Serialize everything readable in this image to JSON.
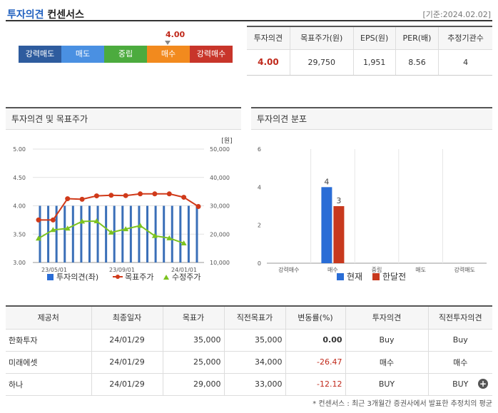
{
  "header": {
    "title_blue": "투자의견",
    "title_rest": " 컨센서스",
    "date": "[기준:2024.02.02]"
  },
  "gauge": {
    "value": "4.00",
    "segments": [
      {
        "label": "강력매도",
        "color": "#2e5c9e"
      },
      {
        "label": "매도",
        "color": "#4a90e2"
      },
      {
        "label": "중립",
        "color": "#4cab3e"
      },
      {
        "label": "매수",
        "color": "#f28a1e"
      },
      {
        "label": "강력매수",
        "color": "#c8352a"
      }
    ]
  },
  "summary": {
    "headers": [
      "투자의견",
      "목표주가(원)",
      "EPS(원)",
      "PER(배)",
      "추정기관수"
    ],
    "values": [
      "4.00",
      "29,750",
      "1,951",
      "8.56",
      "4"
    ]
  },
  "panel1": {
    "title": "투자의견 및 목표주가"
  },
  "panel2": {
    "title": "투자의견 분포"
  },
  "chart_data": [
    {
      "type": "bar+line",
      "unit_label": "[원]",
      "y_left": {
        "min": 3.0,
        "max": 5.0,
        "ticks": [
          "5.00",
          "4.50",
          "4.00",
          "3.50",
          "3.00"
        ]
      },
      "y_right": {
        "min": 10000,
        "max": 50000,
        "ticks": [
          "50,000",
          "40,000",
          "30,000",
          "20,000",
          "10,000"
        ]
      },
      "x_ticks": [
        "23/05/01",
        "23/09/01",
        "24/01/01"
      ],
      "legend": [
        "투자의견(좌)",
        "목표주가",
        "수정주가"
      ],
      "opinion_bars": [
        4.0,
        4.0,
        4.0,
        4.0,
        4.0,
        4.0,
        4.0,
        4.0,
        4.0,
        4.0,
        4.0,
        4.0,
        4.0,
        4.0,
        4.0,
        4.0,
        4.0,
        4.0,
        4.0,
        4.0
      ],
      "series": [
        {
          "name": "목표주가",
          "color": "#d03a1a",
          "values": [
            25000,
            25000,
            32500,
            32300,
            33500,
            33700,
            33600,
            34200,
            34200,
            34200,
            33000,
            29750
          ]
        },
        {
          "name": "수정주가",
          "color": "#7cc31f",
          "values": [
            18500,
            21500,
            22000,
            24500,
            24600,
            20600,
            21800,
            23000,
            19400,
            18600,
            16800
          ]
        }
      ]
    },
    {
      "type": "bar",
      "categories": [
        "강력매수",
        "매수",
        "중립",
        "매도",
        "강력매도"
      ],
      "y_ticks": [
        "6",
        "4",
        "2",
        "0"
      ],
      "ylim": [
        0,
        6
      ],
      "legend": [
        "현재",
        "한달전"
      ],
      "series": [
        {
          "name": "현재",
          "color": "#2a6dd6",
          "values": [
            0,
            4,
            0,
            0,
            0
          ]
        },
        {
          "name": "한달전",
          "color": "#c8391e",
          "values": [
            0,
            3,
            0,
            0,
            0
          ]
        }
      ]
    }
  ],
  "table": {
    "headers": [
      "제공처",
      "최종일자",
      "목표가",
      "직전목표가",
      "변동률(%)",
      "투자의견",
      "직전투자의견"
    ],
    "rows": [
      [
        "한화투자",
        "24/01/29",
        "35,000",
        "35,000",
        "0.00",
        "Buy",
        "Buy"
      ],
      [
        "미래에셋",
        "24/01/29",
        "25,000",
        "34,000",
        "-26.47",
        "매수",
        "매수"
      ],
      [
        "하나",
        "24/01/29",
        "29,000",
        "33,000",
        "-12.12",
        "BUY",
        "BUY"
      ]
    ]
  },
  "footnote": "* 컨센서스 : 최근 3개월간 증권사에서 발표한 추정치의 평균"
}
